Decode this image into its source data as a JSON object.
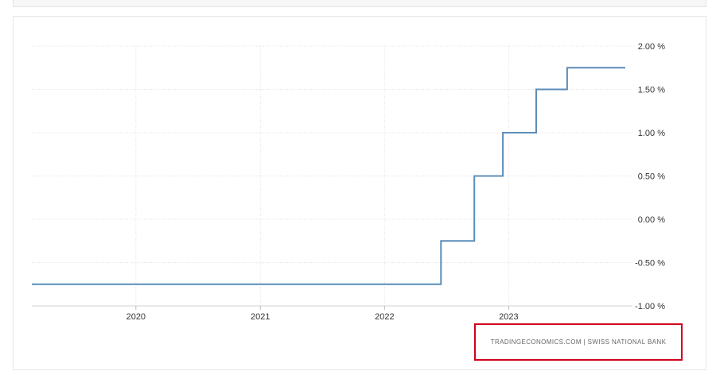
{
  "source": {
    "label": "TRADINGECONOMICS.COM  |  SWISS NATIONAL BANK"
  },
  "colors": {
    "line": "#5b8db8",
    "grid": "#e0e0e0",
    "highlight_box": "#d0021b"
  },
  "chart_data": {
    "type": "line",
    "title": "",
    "xlabel": "",
    "ylabel": "",
    "line_shape": "step",
    "grid": true,
    "y_axis_side": "right",
    "ylim": [
      -1.0,
      2.0
    ],
    "xlim": [
      "2019-03-01",
      "2023-12-31"
    ],
    "y_ticks": [
      {
        "value": 2.0,
        "label": "2.00 %"
      },
      {
        "value": 1.5,
        "label": "1.50 %"
      },
      {
        "value": 1.0,
        "label": "1.00 %"
      },
      {
        "value": 0.5,
        "label": "0.50 %"
      },
      {
        "value": 0.0,
        "label": "0.00 %"
      },
      {
        "value": -0.5,
        "label": "-0.50 %"
      },
      {
        "value": -1.0,
        "label": "-1.00 %"
      }
    ],
    "x_ticks": [
      {
        "date": "2020-01-01",
        "label": "2020"
      },
      {
        "date": "2021-01-01",
        "label": "2021"
      },
      {
        "date": "2022-01-01",
        "label": "2022"
      },
      {
        "date": "2023-01-01",
        "label": "2023"
      }
    ],
    "series": [
      {
        "points": [
          {
            "x": "2019-03-01",
            "y": -0.75
          },
          {
            "x": "2022-06-16",
            "y": -0.25
          },
          {
            "x": "2022-09-22",
            "y": 0.5
          },
          {
            "x": "2022-12-15",
            "y": 1.0
          },
          {
            "x": "2023-03-23",
            "y": 1.5
          },
          {
            "x": "2023-06-22",
            "y": 1.75
          },
          {
            "x": "2023-12-10",
            "y": 1.75
          }
        ]
      }
    ]
  }
}
